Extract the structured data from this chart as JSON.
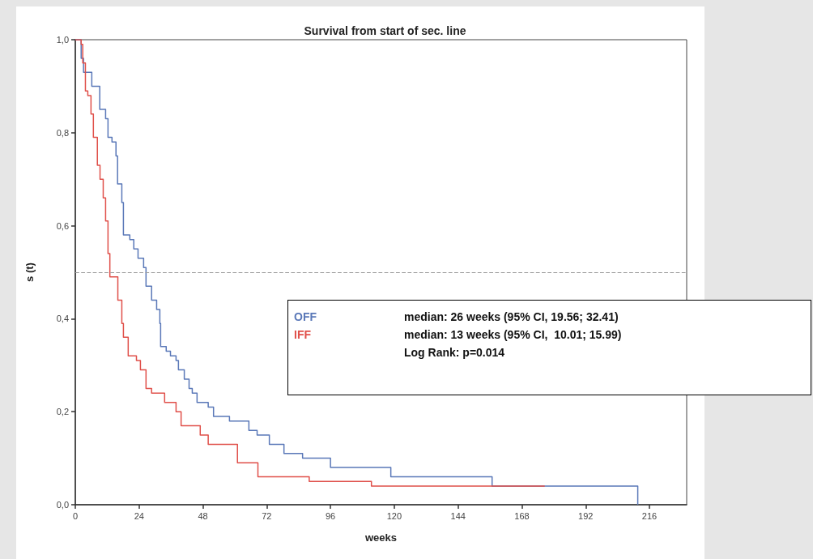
{
  "chart_data": {
    "type": "step",
    "title": "Survival from start of sec. line",
    "xlabel": "weeks",
    "ylabel": "s (t)",
    "xlim": [
      0,
      230
    ],
    "xticks": [
      0,
      24,
      48,
      72,
      96,
      120,
      144,
      168,
      192,
      216
    ],
    "ylim": [
      0,
      1
    ],
    "yticks": [
      {
        "value": 0,
        "label": "0,0"
      },
      {
        "value": 0.2,
        "label": "0,2"
      },
      {
        "value": 0.4,
        "label": "0,4"
      },
      {
        "value": 0.6,
        "label": "0,6"
      },
      {
        "value": 0.8,
        "label": "0,8"
      },
      {
        "value": 1,
        "label": "1,0"
      }
    ],
    "grid": false,
    "legend": "bottom left",
    "marker": "none",
    "line_style": "solid",
    "series": [
      {
        "name": "OFF",
        "color": "#5a78b8",
        "x": [
          0,
          2.2,
          3.1,
          6.2,
          9.2,
          11.4,
          12.3,
          13.8,
          15.3,
          15.9,
          17.5,
          18.1,
          20.5,
          22,
          23.6,
          25.7,
          26.6,
          28.7,
          30.6,
          31.8,
          32.1,
          34.2,
          35.8,
          37.9,
          38.8,
          41,
          42.8,
          44,
          45.8,
          50,
          52,
          58,
          65.3,
          68.4,
          73,
          78.5,
          85.5,
          96,
          118.7,
          156.8,
          211.6
        ],
        "values": [
          1,
          0.96,
          0.93,
          0.9,
          0.85,
          0.83,
          0.79,
          0.78,
          0.75,
          0.69,
          0.65,
          0.58,
          0.57,
          0.55,
          0.53,
          0.51,
          0.47,
          0.44,
          0.42,
          0.39,
          0.34,
          0.33,
          0.32,
          0.31,
          0.29,
          0.27,
          0.25,
          0.24,
          0.22,
          0.21,
          0.19,
          0.18,
          0.16,
          0.15,
          0.13,
          0.11,
          0.1,
          0.08,
          0.06,
          0.04,
          0
        ]
      },
      {
        "name": "IFF",
        "color": "#e0504a",
        "x": [
          0,
          2.2,
          2.8,
          3.8,
          4.7,
          5.9,
          6.8,
          8.3,
          9.3,
          10.5,
          11.4,
          12.3,
          13,
          16,
          17.5,
          18.1,
          19.9,
          23,
          24.5,
          26.6,
          28.7,
          33.6,
          37.9,
          39.8,
          47,
          50,
          61,
          68.7,
          88,
          111.4,
          176.6
        ],
        "values": [
          1,
          0.99,
          0.95,
          0.89,
          0.88,
          0.84,
          0.79,
          0.73,
          0.7,
          0.66,
          0.61,
          0.54,
          0.49,
          0.44,
          0.39,
          0.36,
          0.32,
          0.31,
          0.29,
          0.25,
          0.24,
          0.22,
          0.2,
          0.17,
          0.15,
          0.13,
          0.09,
          0.06,
          0.05,
          0.04,
          0.04
        ]
      }
    ],
    "ref_lines": [
      {
        "axis": "y",
        "value": 0.5,
        "color": "#a0a0a0",
        "line_style": "dashed"
      }
    ],
    "annotations": [
      "median: 26 weeks (95% CI, 19.56; 32.41)",
      "median: 13 weeks (95% CI,  10.01; 15.99)",
      "Log Rank: p=0.014"
    ]
  }
}
